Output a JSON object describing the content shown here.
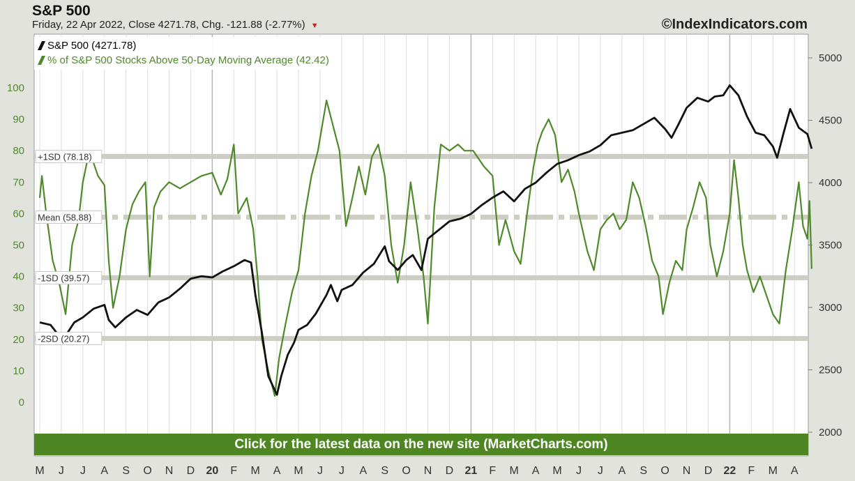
{
  "header": {
    "title": "S&P 500",
    "subtitle": "Friday, 22 Apr 2022, Close 4271.78, Chg. -121.88 (-2.77%)",
    "arrow": "▼",
    "credit": "©IndexIndicators.com"
  },
  "banner": {
    "label": "Click for the latest data on the new site (MarketCharts.com)"
  },
  "colors": {
    "sp500": "#111111",
    "breadth": "#4e8a2a",
    "bands": "#cdcdc4",
    "grid": "#dcdcdc",
    "banner": "#4e8721"
  },
  "chart_data": {
    "type": "line",
    "title": "S&P 500",
    "legend_position": "top-left",
    "grid": true,
    "x_tick_labels": [
      "M",
      "J",
      "J",
      "A",
      "S",
      "O",
      "N",
      "D",
      "20",
      "F",
      "M",
      "A",
      "M",
      "J",
      "J",
      "A",
      "S",
      "O",
      "N",
      "D",
      "21",
      "F",
      "M",
      "A",
      "M",
      "J",
      "J",
      "A",
      "S",
      "O",
      "N",
      "D",
      "22",
      "F",
      "M",
      "A"
    ],
    "left_axis": {
      "ticks": [
        0,
        10,
        20,
        30,
        40,
        50,
        60,
        70,
        80,
        90,
        100
      ],
      "range": [
        -9,
        107
      ]
    },
    "right_axis": {
      "ticks": [
        2000,
        2500,
        3000,
        3500,
        4000,
        4500,
        5000
      ],
      "range": [
        2000,
        5000
      ]
    },
    "bands": [
      {
        "label": "+1SD (78.18)",
        "value": 78.18
      },
      {
        "label": "Mean (58.88)",
        "value": 58.88
      },
      {
        "label": "-1SD (39.57)",
        "value": 39.57
      },
      {
        "label": "-2SD (20.27)",
        "value": 20.27
      }
    ],
    "series": [
      {
        "name": "S&P 500 (4271.78)",
        "axis": "right",
        "points": [
          [
            0,
            2880
          ],
          [
            0.5,
            2860
          ],
          [
            1,
            2750
          ],
          [
            1.3,
            2800
          ],
          [
            1.6,
            2880
          ],
          [
            2,
            2920
          ],
          [
            2.5,
            2990
          ],
          [
            3,
            3020
          ],
          [
            3.2,
            2900
          ],
          [
            3.5,
            2840
          ],
          [
            4,
            2920
          ],
          [
            4.5,
            2980
          ],
          [
            5,
            2940
          ],
          [
            5.5,
            3040
          ],
          [
            6,
            3080
          ],
          [
            6.5,
            3150
          ],
          [
            7,
            3230
          ],
          [
            7.5,
            3250
          ],
          [
            8,
            3240
          ],
          [
            8.5,
            3290
          ],
          [
            9,
            3330
          ],
          [
            9.5,
            3380
          ],
          [
            9.8,
            3360
          ],
          [
            10,
            3100
          ],
          [
            10.3,
            2800
          ],
          [
            10.6,
            2450
          ],
          [
            11,
            2300
          ],
          [
            11.2,
            2450
          ],
          [
            11.5,
            2620
          ],
          [
            11.8,
            2720
          ],
          [
            12,
            2820
          ],
          [
            12.4,
            2860
          ],
          [
            12.8,
            2950
          ],
          [
            13.3,
            3100
          ],
          [
            13.5,
            3180
          ],
          [
            13.8,
            3050
          ],
          [
            14,
            3140
          ],
          [
            14.5,
            3180
          ],
          [
            15,
            3280
          ],
          [
            15.5,
            3350
          ],
          [
            16,
            3490
          ],
          [
            16.2,
            3370
          ],
          [
            16.6,
            3300
          ],
          [
            17,
            3380
          ],
          [
            17.3,
            3420
          ],
          [
            17.7,
            3300
          ],
          [
            18,
            3550
          ],
          [
            18.5,
            3620
          ],
          [
            19,
            3690
          ],
          [
            19.5,
            3710
          ],
          [
            20,
            3750
          ],
          [
            20.5,
            3820
          ],
          [
            21,
            3880
          ],
          [
            21.5,
            3930
          ],
          [
            22,
            3850
          ],
          [
            22.5,
            3950
          ],
          [
            23,
            4000
          ],
          [
            23.5,
            4080
          ],
          [
            24,
            4150
          ],
          [
            24.5,
            4180
          ],
          [
            25,
            4220
          ],
          [
            25.5,
            4250
          ],
          [
            26,
            4300
          ],
          [
            26.5,
            4380
          ],
          [
            27,
            4400
          ],
          [
            27.5,
            4420
          ],
          [
            28,
            4470
          ],
          [
            28.5,
            4520
          ],
          [
            29,
            4430
          ],
          [
            29.3,
            4360
          ],
          [
            29.6,
            4460
          ],
          [
            30,
            4600
          ],
          [
            30.5,
            4680
          ],
          [
            31,
            4650
          ],
          [
            31.3,
            4690
          ],
          [
            31.7,
            4700
          ],
          [
            32,
            4780
          ],
          [
            32.4,
            4700
          ],
          [
            32.8,
            4530
          ],
          [
            33.2,
            4400
          ],
          [
            33.6,
            4380
          ],
          [
            34,
            4290
          ],
          [
            34.2,
            4200
          ],
          [
            34.5,
            4400
          ],
          [
            34.8,
            4590
          ],
          [
            35.2,
            4440
          ],
          [
            35.6,
            4390
          ],
          [
            35.8,
            4271.78
          ]
        ]
      },
      {
        "name": "% of S&P 500 Stocks Above 50-Day Moving Average (42.42)",
        "axis": "left",
        "points": [
          [
            0,
            65
          ],
          [
            0.1,
            72
          ],
          [
            0.3,
            60
          ],
          [
            0.6,
            45
          ],
          [
            0.9,
            38
          ],
          [
            1.2,
            28
          ],
          [
            1.5,
            50
          ],
          [
            1.8,
            58
          ],
          [
            2,
            70
          ],
          [
            2.3,
            80
          ],
          [
            2.5,
            76
          ],
          [
            2.7,
            72
          ],
          [
            3,
            69
          ],
          [
            3.2,
            45
          ],
          [
            3.4,
            30
          ],
          [
            3.7,
            40
          ],
          [
            4,
            55
          ],
          [
            4.3,
            63
          ],
          [
            4.6,
            67
          ],
          [
            4.9,
            70
          ],
          [
            5.1,
            40
          ],
          [
            5.3,
            62
          ],
          [
            5.6,
            67
          ],
          [
            6,
            70
          ],
          [
            6.5,
            68
          ],
          [
            7,
            70
          ],
          [
            7.5,
            72
          ],
          [
            8,
            73
          ],
          [
            8.4,
            66
          ],
          [
            8.7,
            71
          ],
          [
            9,
            82
          ],
          [
            9.2,
            60
          ],
          [
            9.6,
            65
          ],
          [
            9.9,
            55
          ],
          [
            10.1,
            40
          ],
          [
            10.3,
            20
          ],
          [
            10.6,
            10
          ],
          [
            10.9,
            2
          ],
          [
            11.1,
            14
          ],
          [
            11.4,
            25
          ],
          [
            11.7,
            35
          ],
          [
            12,
            42
          ],
          [
            12.3,
            60
          ],
          [
            12.6,
            72
          ],
          [
            12.9,
            80
          ],
          [
            13.1,
            88
          ],
          [
            13.3,
            96
          ],
          [
            13.6,
            88
          ],
          [
            13.9,
            80
          ],
          [
            14.2,
            56
          ],
          [
            14.5,
            65
          ],
          [
            14.8,
            75
          ],
          [
            15.1,
            66
          ],
          [
            15.4,
            78
          ],
          [
            15.7,
            82
          ],
          [
            16,
            72
          ],
          [
            16.3,
            50
          ],
          [
            16.6,
            38
          ],
          [
            16.9,
            50
          ],
          [
            17.2,
            70
          ],
          [
            17.5,
            56
          ],
          [
            17.8,
            40
          ],
          [
            18,
            25
          ],
          [
            18.3,
            62
          ],
          [
            18.6,
            82
          ],
          [
            19,
            80
          ],
          [
            19.4,
            82
          ],
          [
            19.7,
            80
          ],
          [
            20.1,
            80
          ],
          [
            20.6,
            75
          ],
          [
            21,
            72
          ],
          [
            21.3,
            50
          ],
          [
            21.6,
            58
          ],
          [
            22,
            48
          ],
          [
            22.3,
            44
          ],
          [
            22.6,
            60
          ],
          [
            22.9,
            75
          ],
          [
            23.1,
            82
          ],
          [
            23.3,
            86
          ],
          [
            23.6,
            90
          ],
          [
            23.9,
            85
          ],
          [
            24.2,
            70
          ],
          [
            24.5,
            74
          ],
          [
            24.8,
            67
          ],
          [
            25,
            60
          ],
          [
            25.4,
            48
          ],
          [
            25.7,
            42
          ],
          [
            26,
            55
          ],
          [
            26.3,
            58
          ],
          [
            26.6,
            60
          ],
          [
            26.9,
            55
          ],
          [
            27.2,
            58
          ],
          [
            27.5,
            70
          ],
          [
            27.8,
            65
          ],
          [
            28.1,
            56
          ],
          [
            28.4,
            45
          ],
          [
            28.7,
            40
          ],
          [
            28.9,
            28
          ],
          [
            29.2,
            38
          ],
          [
            29.5,
            45
          ],
          [
            29.8,
            42
          ],
          [
            30,
            55
          ],
          [
            30.3,
            62
          ],
          [
            30.6,
            70
          ],
          [
            30.9,
            65
          ],
          [
            31.1,
            50
          ],
          [
            31.4,
            40
          ],
          [
            31.7,
            48
          ],
          [
            32,
            60
          ],
          [
            32.2,
            77
          ],
          [
            32.4,
            65
          ],
          [
            32.6,
            50
          ],
          [
            32.8,
            42
          ],
          [
            33.1,
            35
          ],
          [
            33.4,
            40
          ],
          [
            33.7,
            34
          ],
          [
            34,
            28
          ],
          [
            34.3,
            25
          ],
          [
            34.6,
            42
          ],
          [
            34.9,
            55
          ],
          [
            35.2,
            70
          ],
          [
            35.4,
            56
          ],
          [
            35.6,
            52
          ],
          [
            35.7,
            64
          ],
          [
            35.8,
            42.42
          ]
        ]
      }
    ]
  }
}
